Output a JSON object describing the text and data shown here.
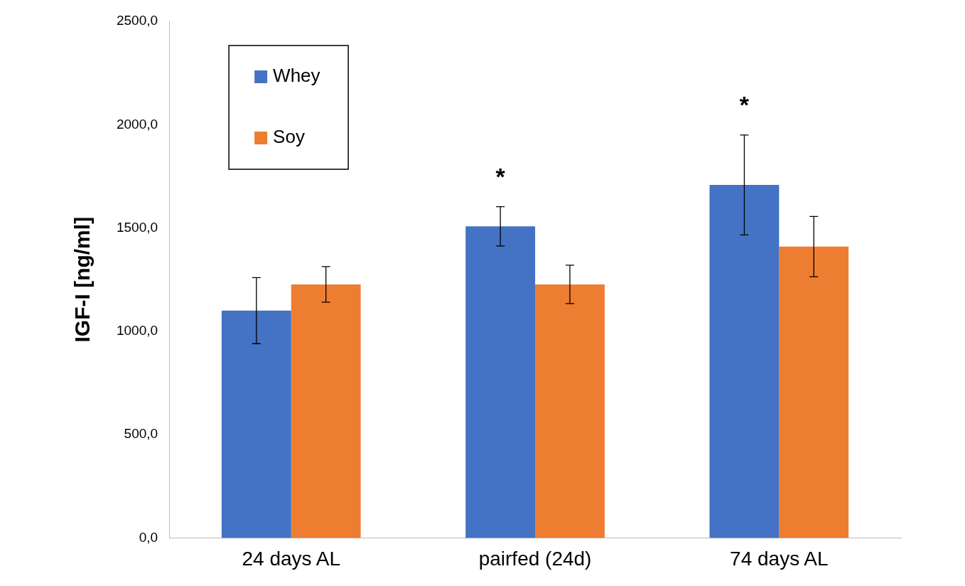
{
  "chart_data": {
    "type": "bar",
    "ylabel": "IGF-I [ng/ml]",
    "categories": [
      "24 days AL",
      "pairfed (24d)",
      "74 days AL"
    ],
    "series": [
      {
        "name": "Whey",
        "color": "#4472c4",
        "values": [
          1100,
          1508,
          1708
        ],
        "errors": [
          160,
          95,
          242
        ]
      },
      {
        "name": "Soy",
        "color": "#ed7d31",
        "values": [
          1227,
          1227,
          1410
        ],
        "errors": [
          86,
          93,
          146
        ]
      }
    ],
    "ylim": [
      0,
      2500
    ],
    "yticks": [
      {
        "value": 0,
        "label": "0,0"
      },
      {
        "value": 500,
        "label": "500,0"
      },
      {
        "value": 1000,
        "label": "1000,0"
      },
      {
        "value": 1500,
        "label": "1500,0"
      },
      {
        "value": 2000,
        "label": "2000,0"
      },
      {
        "value": 2500,
        "label": "2500,0"
      }
    ],
    "grid": false,
    "legend": "top left",
    "annotations": [
      "*",
      "*"
    ]
  }
}
